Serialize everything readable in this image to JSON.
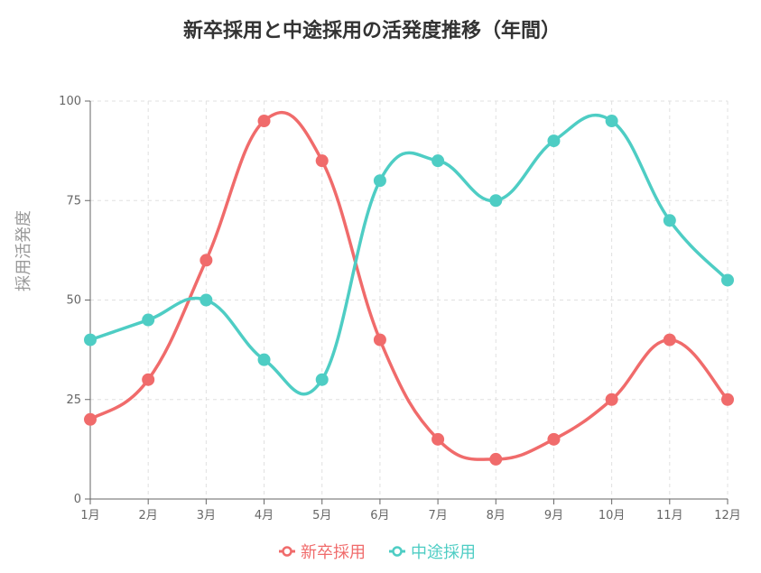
{
  "chart_data": {
    "type": "line",
    "title": "新卒採用と中途採用の活発度推移（年間）",
    "xlabel": "",
    "ylabel": "採用活発度",
    "categories": [
      "1月",
      "2月",
      "3月",
      "4月",
      "5月",
      "6月",
      "7月",
      "8月",
      "9月",
      "10月",
      "11月",
      "12月"
    ],
    "ylim": [
      0,
      100
    ],
    "yticks": [
      0,
      25,
      50,
      75,
      100
    ],
    "grid": true,
    "legend": "bottom",
    "series": [
      {
        "name": "新卒採用",
        "color": "#f06b6b",
        "values": [
          20,
          30,
          60,
          95,
          85,
          40,
          15,
          10,
          15,
          25,
          40,
          25
        ]
      },
      {
        "name": "中途採用",
        "color": "#4ecdc4",
        "values": [
          40,
          45,
          50,
          35,
          30,
          80,
          85,
          75,
          90,
          95,
          70,
          55
        ]
      }
    ]
  }
}
